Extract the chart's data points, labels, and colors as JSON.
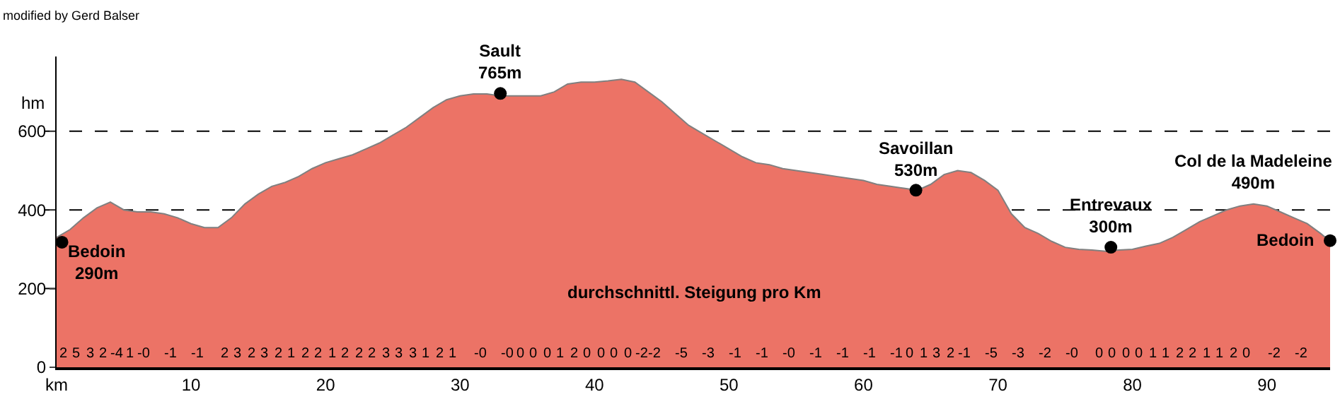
{
  "chart_data": [
    {
      "type": "area",
      "ylabel": "hm",
      "x": [
        0,
        1,
        2,
        3,
        4,
        5,
        6,
        7,
        8,
        9,
        10,
        11,
        12,
        13,
        14,
        15,
        16,
        17,
        18,
        19,
        20,
        21,
        22,
        23,
        24,
        25,
        26,
        27,
        28,
        29,
        30,
        31,
        32,
        33,
        34,
        35,
        36,
        37,
        38,
        39,
        40,
        41,
        42,
        43,
        44,
        45,
        46,
        47,
        48,
        49,
        50,
        51,
        52,
        53,
        54,
        55,
        56,
        57,
        58,
        59,
        60,
        61,
        62,
        63,
        64,
        65,
        66,
        67,
        68,
        69,
        70,
        71,
        72,
        73,
        74,
        75,
        76,
        77,
        78,
        79,
        80,
        81,
        82,
        83,
        84,
        85,
        86,
        87,
        88,
        89,
        90,
        91,
        92,
        93,
        94,
        94.7
      ],
      "series": [
        {
          "color": "#ec7366",
          "values": [
            330,
            350,
            380,
            405,
            420,
            400,
            395,
            395,
            390,
            380,
            365,
            355,
            355,
            380,
            415,
            440,
            460,
            470,
            485,
            505,
            520,
            530,
            540,
            555,
            570,
            590,
            610,
            635,
            660,
            680,
            690,
            695,
            695,
            690,
            690,
            690,
            690,
            700,
            720,
            725,
            725,
            728,
            732,
            725,
            700,
            675,
            645,
            615,
            595,
            575,
            555,
            535,
            520,
            515,
            505,
            500,
            495,
            490,
            485,
            480,
            475,
            465,
            460,
            455,
            450,
            465,
            490,
            500,
            495,
            475,
            450,
            390,
            355,
            340,
            320,
            305,
            300,
            298,
            295,
            298,
            300,
            308,
            315,
            330,
            350,
            370,
            385,
            400,
            410,
            415,
            410,
            395,
            380,
            365,
            340,
            320
          ]
        },
        {
          "type": "scatter",
          "color": "#000000",
          "marker": "circle",
          "x": [
            0.4,
            33,
            63.9,
            78.4,
            94.7
          ],
          "values": [
            318,
            696,
            450,
            305,
            322
          ]
        }
      ],
      "xlim": [
        0,
        94.7
      ],
      "ylim": [
        0,
        790
      ],
      "xticks": [
        {
          "value": 0,
          "label": "km"
        },
        10,
        20,
        30,
        40,
        50,
        60,
        70,
        80,
        90
      ],
      "yticks": [
        0,
        200,
        400,
        600
      ],
      "grid": "y",
      "line_style": "dashed",
      "annotations": [
        "modified by Gerd Balser",
        {
          "text": "Bedoin\n290m",
          "x": 0.4,
          "y": 318
        },
        {
          "text": "Sault\n765m",
          "x": 33,
          "y": 696
        },
        {
          "text": "Savoillan\n530m",
          "x": 63.9,
          "y": 450
        },
        {
          "text": "Entrevaux\n300m",
          "x": 78.4,
          "y": 305
        },
        {
          "text": "Col de la Madeleine\n490m",
          "x": 89,
          "y": 415
        },
        {
          "text": "Bedoin",
          "x": 94.7,
          "y": 322
        }
      ]
    },
    {
      "type": "other",
      "xlabel": "durchschnittl. Steigung pro Km",
      "categories": [
        "2",
        "5",
        "3",
        "2",
        "-4",
        "1",
        "-0",
        null,
        "-1",
        null,
        "-1",
        null,
        "2",
        "3",
        "2",
        "3",
        "2",
        "1",
        "2",
        "2",
        "1",
        "2",
        "2",
        "2",
        "3",
        "3",
        "3",
        "1",
        "2",
        "1",
        null,
        "-0",
        null,
        "-0",
        "0",
        "0",
        "0",
        "1",
        "2",
        "0",
        "0",
        "0",
        "0",
        "-2",
        "-2",
        null,
        "-5",
        null,
        "-3",
        null,
        "-1",
        null,
        "-1",
        null,
        "-0",
        null,
        "-1",
        null,
        "-1",
        null,
        "-1",
        null,
        "-1",
        "0",
        "1",
        "3",
        "2",
        "-1",
        null,
        "-5",
        null,
        "-3",
        null,
        "-2",
        null,
        "-0",
        null,
        "0",
        "0",
        "0",
        "0",
        "1",
        "1",
        "2",
        "2",
        "1",
        "1",
        "2",
        "0",
        null,
        "-2",
        null,
        "-2",
        null,
        null
      ]
    }
  ]
}
